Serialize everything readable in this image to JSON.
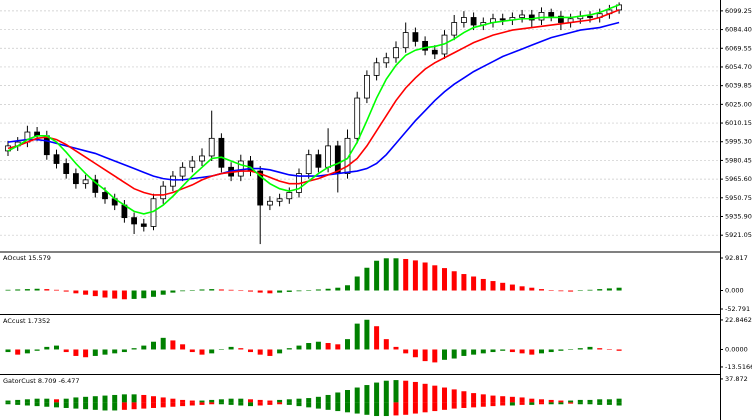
{
  "chart_data": [
    {
      "type": "candlestick",
      "open": [
        5988,
        5992,
        5995,
        6003,
        6000,
        5985,
        5978,
        5970,
        5962,
        5965,
        5955,
        5950,
        5945,
        5935,
        5930,
        5928,
        5950,
        5960,
        5968,
        5975,
        5980,
        5984,
        5998,
        5975,
        5968,
        5980,
        5972,
        5945,
        5948,
        5950,
        5955,
        5970,
        5985,
        5975,
        5992,
        5970,
        5998,
        6030,
        6048,
        6058,
        6062,
        6070,
        6082,
        6075,
        6068,
        6065,
        6080,
        6090,
        6094,
        6088,
        6090,
        6093,
        6092,
        6094,
        6096,
        6092,
        6098,
        6095,
        6090,
        6093,
        6095,
        6094,
        6097,
        6100
      ],
      "high": [
        5996,
        5999,
        6008,
        6007,
        6004,
        5989,
        5982,
        5974,
        5969,
        5969,
        5959,
        5954,
        5949,
        5939,
        5934,
        5954,
        5964,
        5972,
        5979,
        5984,
        5990,
        6020,
        6002,
        5979,
        5985,
        5984,
        5976,
        5952,
        5954,
        5959,
        5974,
        5989,
        5989,
        6006,
        5996,
        6005,
        6035,
        6052,
        6062,
        6066,
        6075,
        6090,
        6086,
        6079,
        6072,
        6084,
        6096,
        6099,
        6098,
        6094,
        6097,
        6097,
        6098,
        6100,
        6100,
        6102,
        6101,
        6099,
        6097,
        6099,
        6099,
        6101,
        6104,
        6106
      ],
      "low": [
        5984,
        5988,
        5991,
        5996,
        5981,
        5974,
        5966,
        5958,
        5958,
        5951,
        5946,
        5941,
        5931,
        5922,
        5924,
        5925,
        5946,
        5956,
        5964,
        5971,
        5976,
        5980,
        5971,
        5964,
        5964,
        5968,
        5914,
        5941,
        5944,
        5946,
        5951,
        5966,
        5971,
        5971,
        5955,
        5966,
        5994,
        6026,
        6044,
        6054,
        6058,
        6066,
        6071,
        6064,
        6061,
        6061,
        6076,
        6086,
        6084,
        6084,
        6086,
        6088,
        6088,
        6090,
        6086,
        6088,
        6091,
        6084,
        6086,
        6089,
        6090,
        6090,
        6093,
        6097
      ],
      "close": [
        5992,
        5995,
        6003,
        6000,
        5985,
        5978,
        5970,
        5962,
        5965,
        5955,
        5950,
        5945,
        5935,
        5930,
        5928,
        5950,
        5960,
        5968,
        5975,
        5980,
        5984,
        5998,
        5975,
        5968,
        5980,
        5972,
        5945,
        5948,
        5950,
        5955,
        5970,
        5985,
        5975,
        5992,
        5970,
        5998,
        6030,
        6048,
        6058,
        6062,
        6070,
        6082,
        6075,
        6068,
        6065,
        6080,
        6090,
        6094,
        6088,
        6090,
        6093,
        6092,
        6094,
        6096,
        6092,
        6098,
        6095,
        6090,
        6093,
        6095,
        6094,
        6097,
        6100,
        6104
      ],
      "up_color": "#ffffff",
      "down_color": "#000000",
      "lines": [
        {
          "color": "#0000ff",
          "values": [
            5995,
            5996,
            5997,
            5997,
            5996,
            5994,
            5992,
            5990,
            5988,
            5986,
            5983,
            5980,
            5977,
            5974,
            5971,
            5968,
            5966,
            5965,
            5965,
            5966,
            5967,
            5968,
            5970,
            5972,
            5973,
            5974,
            5974,
            5973,
            5971,
            5969,
            5968,
            5968,
            5968,
            5969,
            5970,
            5971,
            5972,
            5974,
            5978,
            5985,
            5994,
            6003,
            6012,
            6020,
            6028,
            6035,
            6041,
            6046,
            6051,
            6055,
            6059,
            6063,
            6066,
            6069,
            6072,
            6075,
            6078,
            6080,
            6082,
            6084,
            6085,
            6086,
            6088,
            6090
          ]
        },
        {
          "color": "#ff0000",
          "values": [
            5990,
            5992,
            5995,
            5998,
            5999,
            5997,
            5993,
            5988,
            5983,
            5978,
            5973,
            5968,
            5963,
            5958,
            5955,
            5953,
            5953,
            5955,
            5958,
            5961,
            5965,
            5968,
            5970,
            5971,
            5972,
            5972,
            5970,
            5967,
            5964,
            5962,
            5962,
            5964,
            5966,
            5969,
            5972,
            5976,
            5982,
            5992,
            6004,
            6016,
            6028,
            6038,
            6046,
            6053,
            6058,
            6062,
            6066,
            6070,
            6074,
            6077,
            6080,
            6082,
            6084,
            6085,
            6086,
            6087,
            6088,
            6089,
            6090,
            6091,
            6092,
            6094,
            6097,
            6100
          ]
        },
        {
          "color": "#00ff00",
          "values": [
            5988,
            5992,
            5997,
            6000,
            6000,
            5995,
            5987,
            5978,
            5970,
            5963,
            5957,
            5950,
            5945,
            5940,
            5938,
            5940,
            5945,
            5952,
            5960,
            5968,
            5975,
            5982,
            5983,
            5980,
            5977,
            5975,
            5968,
            5962,
            5958,
            5956,
            5958,
            5964,
            5970,
            5975,
            5978,
            5982,
            5995,
            6012,
            6030,
            6045,
            6056,
            6064,
            6068,
            6070,
            6071,
            6073,
            6077,
            6082,
            6086,
            6088,
            6090,
            6091,
            6092,
            6093,
            6093,
            6094,
            6094,
            6094,
            6094,
            6095,
            6096,
            6098,
            6101,
            6104
          ]
        }
      ],
      "ylim": [
        5908.5,
        6106.3
      ],
      "yticks": [
        6099.25,
        {
          "value": 6084.4,
          "label": "6084.40"
        },
        6069.55,
        {
          "value": 6054.7,
          "label": "6054.70"
        },
        6039.85,
        {
          "value": 6025,
          "label": "6025.00"
        },
        6010.15,
        {
          "value": 5995.3,
          "label": "5995.30"
        },
        5980.45,
        {
          "value": 5965.6,
          "label": "5965.60"
        },
        5950.75,
        {
          "value": 5935.9,
          "label": "5935.90"
        },
        5921.05
      ],
      "grid": true
    },
    {
      "type": "bar",
      "title": "AOcust 15.579",
      "values": [
        2,
        3,
        4,
        5,
        4,
        2,
        -3,
        -8,
        -12,
        -16,
        -20,
        -23,
        -25,
        -24,
        -22,
        -18,
        -12,
        -6,
        -2,
        1,
        3,
        4,
        3,
        2,
        0,
        -3,
        -6,
        -8,
        -6,
        -4,
        -2,
        1,
        3,
        5,
        8,
        15,
        40,
        65,
        85,
        92,
        92,
        90,
        86,
        80,
        72,
        64,
        55,
        47,
        40,
        33,
        27,
        22,
        17,
        12,
        8,
        4,
        1,
        -2,
        -3,
        -1,
        2,
        4,
        6,
        8
      ],
      "up_color": "#008000",
      "down_color": "#ff0000",
      "ylim": [
        -64.2,
        107.1
      ],
      "yticks": [
        92.817,
        {
          "value": 0,
          "label": "0.000"
        },
        -52.791
      ]
    },
    {
      "type": "bar",
      "title": "ACcust 1.7352",
      "values": [
        -2,
        -4,
        -3,
        -1,
        2,
        3,
        -2,
        -5,
        -6,
        -5,
        -4,
        -3,
        -2,
        1,
        3,
        6,
        9,
        7,
        4,
        -2,
        -4,
        -3,
        0,
        2,
        1,
        -2,
        -4,
        -5,
        -3,
        1,
        3,
        5,
        6,
        5,
        4,
        8,
        20,
        23,
        18,
        8,
        2,
        -3,
        -6,
        -9,
        -10,
        -8,
        -7,
        -5,
        -4,
        -3,
        -2,
        -1,
        -2,
        -3,
        -4,
        -3,
        -2,
        -1,
        0,
        1,
        2,
        1,
        0,
        -1
      ],
      "up_color": "#008000",
      "down_color": "#ff0000",
      "ylim": [
        -18.2,
        25.9
      ],
      "yticks": [
        22.8462,
        {
          "value": 0,
          "label": "0.0000"
        },
        -13.5166
      ]
    },
    {
      "type": "gator",
      "title": "GatorCust 8.709 -6.477",
      "series": [
        {
          "values": [
            3,
            4,
            5,
            6,
            6,
            5,
            6,
            8,
            9,
            10,
            11,
            12,
            13,
            13,
            12,
            10,
            8,
            6,
            4,
            3,
            3,
            4,
            5,
            6,
            6,
            5,
            4,
            3,
            4,
            5,
            6,
            7,
            9,
            12,
            16,
            20,
            24,
            28,
            32,
            35,
            36,
            35,
            33,
            30,
            27,
            24,
            21,
            18,
            15,
            13,
            11,
            10,
            9,
            8,
            6,
            5,
            4,
            3,
            3,
            4,
            4,
            5,
            5,
            6
          ]
        },
        {
          "values": [
            -3,
            -4,
            -5,
            -6,
            -7,
            -8,
            -9,
            -10,
            -11,
            -12,
            -13,
            -13,
            -12,
            -11,
            -10,
            -9,
            -8,
            -7,
            -6,
            -5,
            -4,
            -3,
            -3,
            -4,
            -5,
            -6,
            -5,
            -4,
            -3,
            -4,
            -6,
            -8,
            -10,
            -12,
            -14,
            -16,
            -18,
            -20,
            -22,
            -22,
            -21,
            -20,
            -18,
            -16,
            -14,
            -12,
            -10,
            -9,
            -8,
            -7,
            -6,
            -5,
            -5,
            -4,
            -4,
            -3,
            -3,
            -3,
            -2,
            -3,
            -3,
            -4,
            -4,
            -5
          ]
        }
      ],
      "up_color": "#008000",
      "down_color": "#ff0000",
      "ylim": [
        -28.4,
        42.6
      ],
      "yticks": [
        37.872
      ]
    }
  ]
}
